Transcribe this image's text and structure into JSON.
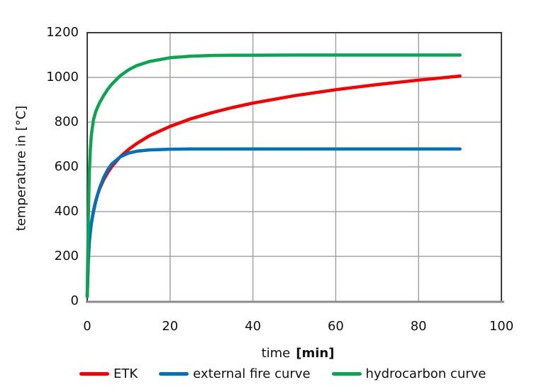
{
  "chart_data": {
    "type": "line",
    "title": "",
    "ylabel": "temperature in [°C]",
    "xlabel_normal": "time",
    "xlabel_bold": "[min]",
    "xlim": [
      0,
      100
    ],
    "ylim": [
      0,
      1200
    ],
    "x_ticks": [
      0,
      20,
      40,
      60,
      80,
      100
    ],
    "y_ticks": [
      0,
      200,
      400,
      600,
      800,
      1000,
      1200
    ],
    "grid": true,
    "legend_position": "bottom",
    "colors": {
      "gridline": "#A3A3A3",
      "plot_border": "#3B3B3B",
      "bottom_axis": "#8C8C8C",
      "text": "#111111"
    },
    "series": [
      {
        "name": "ETK",
        "color": "#F80000",
        "points": [
          [
            0,
            20
          ],
          [
            0.25,
            185
          ],
          [
            0.5,
            261
          ],
          [
            0.75,
            312
          ],
          [
            1,
            349
          ],
          [
            1.5,
            404
          ],
          [
            2,
            445
          ],
          [
            2.5,
            476
          ],
          [
            3,
            502
          ],
          [
            4,
            544
          ],
          [
            5,
            576
          ],
          [
            6,
            603
          ],
          [
            8,
            646
          ],
          [
            10,
            678
          ],
          [
            12,
            705
          ],
          [
            15,
            739
          ],
          [
            20,
            781
          ],
          [
            25,
            815
          ],
          [
            30,
            842
          ],
          [
            35,
            865
          ],
          [
            40,
            885
          ],
          [
            50,
            918
          ],
          [
            60,
            945
          ],
          [
            70,
            968
          ],
          [
            80,
            988
          ],
          [
            90,
            1006
          ]
        ]
      },
      {
        "name": "external fire curve",
        "color": "#0070C0",
        "points": [
          [
            0,
            20
          ],
          [
            0.25,
            182
          ],
          [
            0.5,
            263
          ],
          [
            0.75,
            311
          ],
          [
            1,
            346
          ],
          [
            1.5,
            399
          ],
          [
            2,
            441
          ],
          [
            2.5,
            476
          ],
          [
            3,
            506
          ],
          [
            4,
            554
          ],
          [
            5,
            589
          ],
          [
            6,
            614
          ],
          [
            8,
            645
          ],
          [
            10,
            662
          ],
          [
            12,
            670
          ],
          [
            15,
            676
          ],
          [
            20,
            679
          ],
          [
            25,
            680
          ],
          [
            30,
            680
          ],
          [
            40,
            680
          ],
          [
            50,
            680
          ],
          [
            60,
            680
          ],
          [
            70,
            680
          ],
          [
            80,
            680
          ],
          [
            90,
            680
          ]
        ]
      },
      {
        "name": "hydrocarbon curve",
        "color": "#0AA551",
        "points": [
          [
            0,
            20
          ],
          [
            0.25,
            373
          ],
          [
            0.5,
            568
          ],
          [
            0.75,
            679
          ],
          [
            1,
            743
          ],
          [
            1.5,
            810
          ],
          [
            2,
            844
          ],
          [
            2.5,
            867
          ],
          [
            3,
            887
          ],
          [
            4,
            920
          ],
          [
            5,
            948
          ],
          [
            6,
            971
          ],
          [
            8,
            1008
          ],
          [
            10,
            1034
          ],
          [
            12,
            1053
          ],
          [
            15,
            1071
          ],
          [
            20,
            1088
          ],
          [
            25,
            1095
          ],
          [
            30,
            1098
          ],
          [
            35,
            1099
          ],
          [
            40,
            1099
          ],
          [
            50,
            1100
          ],
          [
            60,
            1100
          ],
          [
            70,
            1100
          ],
          [
            80,
            1100
          ],
          [
            90,
            1100
          ]
        ]
      }
    ]
  }
}
